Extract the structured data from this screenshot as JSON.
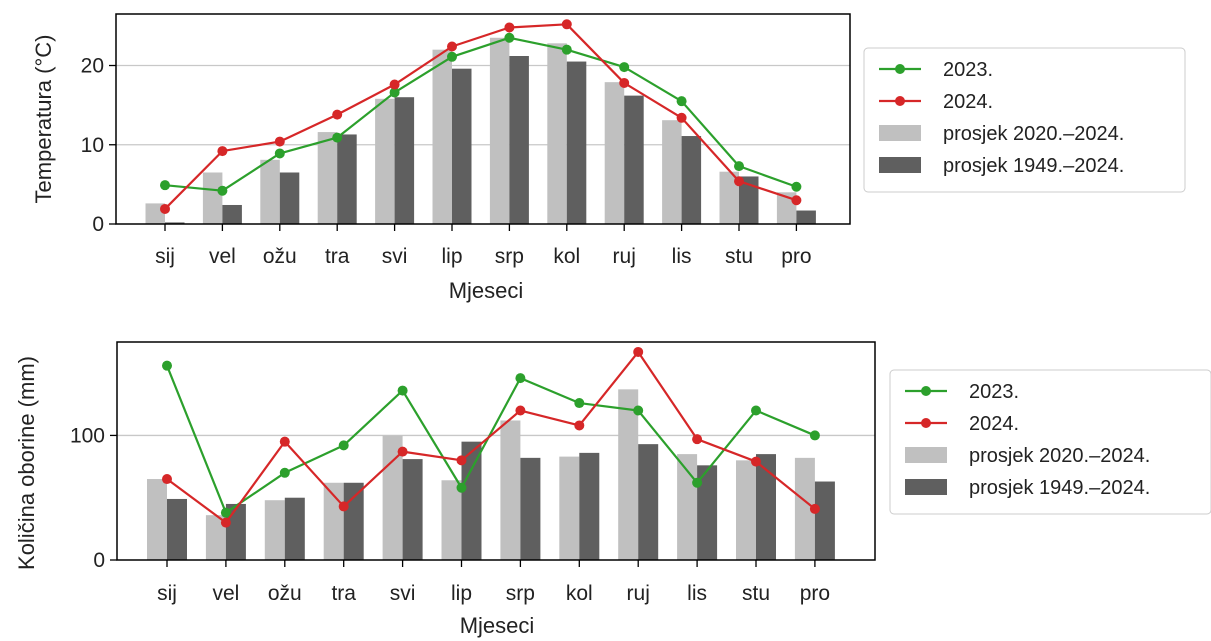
{
  "chart_data": [
    {
      "type": "bar",
      "categories": [
        "sij",
        "vel",
        "ožu",
        "tra",
        "svi",
        "lip",
        "srp",
        "kol",
        "ruj",
        "lis",
        "stu",
        "pro"
      ],
      "xlabel": "Mjeseci",
      "ylabel": "Temperatura (°C)",
      "ylim": [
        0,
        26.5
      ],
      "yticks": [
        0,
        10,
        20
      ],
      "grid": "horizontal",
      "legend_position": "right",
      "bar_series": [
        {
          "name": "prosjek 2020.–2024.",
          "color": "#c0c0c0",
          "values": [
            2.6,
            6.5,
            8.1,
            11.6,
            15.8,
            22.0,
            23.5,
            22.8,
            17.9,
            13.1,
            6.6,
            4.0
          ]
        },
        {
          "name": "prosjek 1949.–2024.",
          "color": "#5f5f5f",
          "values": [
            0.2,
            2.4,
            6.5,
            11.3,
            16.0,
            19.6,
            21.2,
            20.5,
            16.2,
            11.1,
            6.0,
            1.7
          ]
        }
      ],
      "line_series": [
        {
          "name": "2023.",
          "color": "#2ca02c",
          "values": [
            4.9,
            4.2,
            8.9,
            10.9,
            16.6,
            21.1,
            23.5,
            22.0,
            19.8,
            15.5,
            7.3,
            4.7
          ]
        },
        {
          "name": "2024.",
          "color": "#d62728",
          "values": [
            1.9,
            9.2,
            10.4,
            13.8,
            17.6,
            22.4,
            24.8,
            25.2,
            17.8,
            13.4,
            5.4,
            3.0
          ]
        }
      ]
    },
    {
      "type": "bar",
      "categories": [
        "sij",
        "vel",
        "ožu",
        "tra",
        "svi",
        "lip",
        "srp",
        "kol",
        "ruj",
        "lis",
        "stu",
        "pro"
      ],
      "xlabel": "Mjeseci",
      "ylabel": "Količina oborine (mm)",
      "ylim": [
        0,
        175
      ],
      "yticks": [
        0,
        100
      ],
      "grid": "horizontal",
      "legend_position": "right",
      "bar_series": [
        {
          "name": "prosjek 2020.–2024.",
          "color": "#c0c0c0",
          "values": [
            65,
            36,
            48,
            62,
            100,
            64,
            112,
            83,
            137,
            85,
            80,
            82
          ]
        },
        {
          "name": "prosjek 1949.–2024.",
          "color": "#5f5f5f",
          "values": [
            49,
            45,
            50,
            62,
            81,
            95,
            82,
            86,
            93,
            76,
            85,
            63
          ]
        }
      ],
      "line_series": [
        {
          "name": "2023.",
          "color": "#2ca02c",
          "values": [
            156,
            38,
            70,
            92,
            136,
            58,
            146,
            126,
            120,
            62,
            120,
            100
          ]
        },
        {
          "name": "2024.",
          "color": "#d62728",
          "values": [
            65,
            30,
            95,
            43,
            87,
            80,
            120,
            108,
            167,
            97,
            79,
            41
          ]
        }
      ]
    }
  ]
}
